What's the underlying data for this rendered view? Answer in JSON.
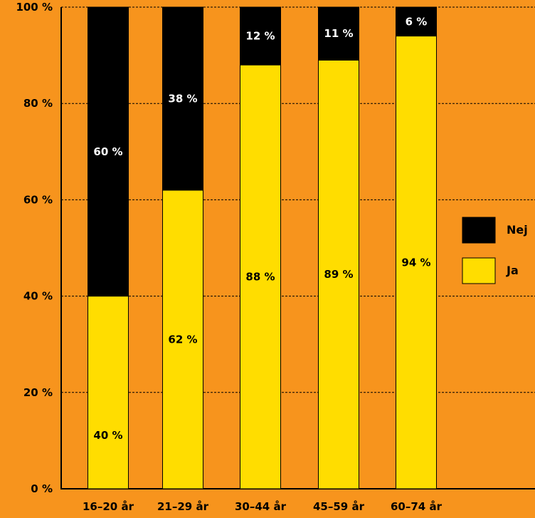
{
  "chart_data": {
    "type": "bar",
    "stacked": true,
    "categories": [
      "16–20 år",
      "21–29 år",
      "30–44 år",
      "45–59 år",
      "60–74 år"
    ],
    "series": [
      {
        "name": "Ja",
        "values": [
          40,
          62,
          88,
          89,
          94
        ],
        "labels": [
          "40 %",
          "62 %",
          "88 %",
          "89 %",
          "94 %"
        ],
        "color": "#FFDD00"
      },
      {
        "name": "Nej",
        "values": [
          60,
          38,
          12,
          11,
          6
        ],
        "labels": [
          "60 %",
          "38 %",
          "12 %",
          "11 %",
          "6 %"
        ],
        "color": "#000000"
      }
    ],
    "yticks": [
      "0 %",
      "20 %",
      "40 %",
      "60 %",
      "80 %",
      "100 %"
    ],
    "ylim": [
      0,
      100
    ],
    "grid": true,
    "legend": {
      "position": "right",
      "items": [
        "Nej",
        "Ja"
      ]
    },
    "title": "",
    "xlabel": "",
    "ylabel": ""
  },
  "colors": {
    "background": "#F7941D",
    "ja": "#FFDD00",
    "nej": "#000000",
    "text": "#000000",
    "label_on_dark": "#FFFFFF"
  }
}
